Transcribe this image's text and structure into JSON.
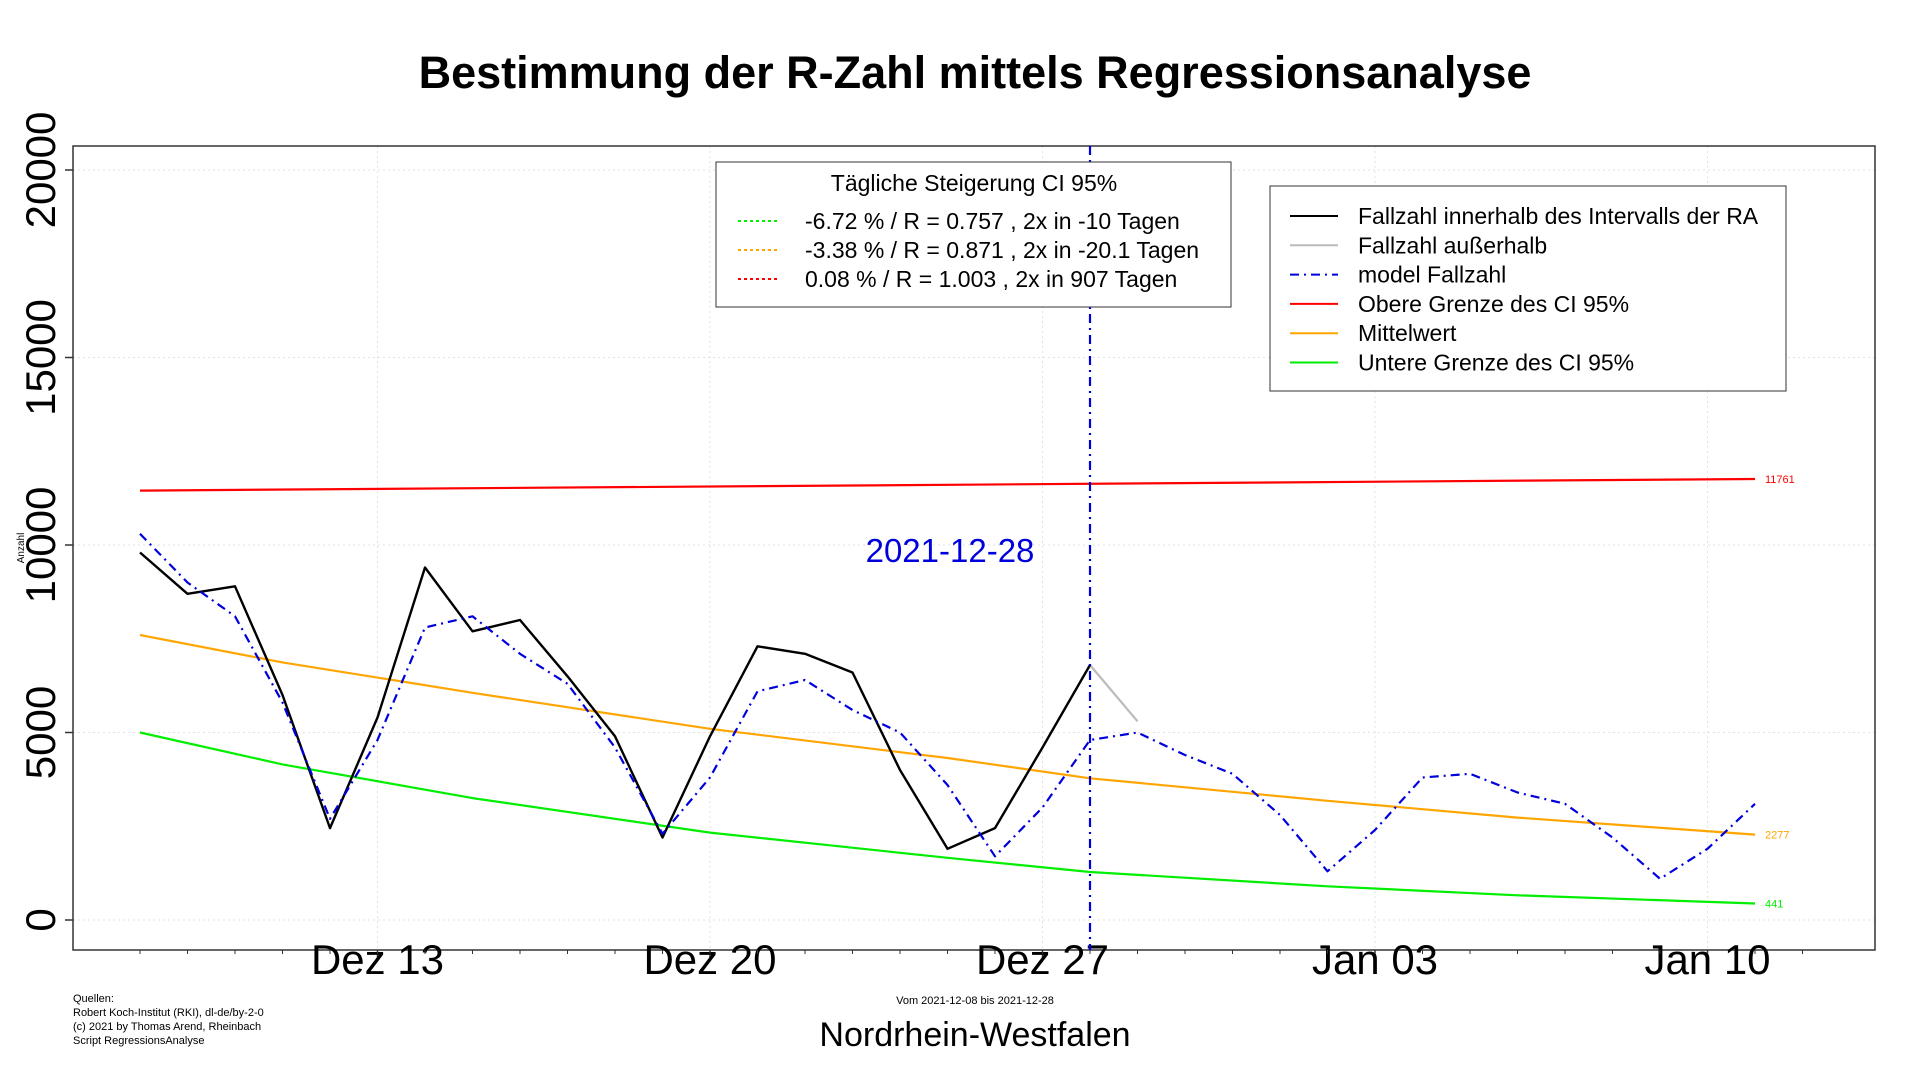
{
  "chart_data": {
    "type": "line",
    "title": "Bestimmung der R-Zahl mittels Regressionsanalyse",
    "xlabel": "Nordrhein-Westfalen",
    "ylabel": "Anzahl",
    "subtitle": "Vom 2021-12-08 bis 2021-12-28",
    "x_ticks": [
      "Dez 13",
      "Dez 20",
      "Dez 27",
      "Jan 03",
      "Jan 10"
    ],
    "y_ticks": [
      "0",
      "5000",
      "10000",
      "15000",
      "20000"
    ],
    "ylim": [
      0,
      20000
    ],
    "grid": true,
    "vline": {
      "date": "2021-12-28",
      "label": "2021-12-28",
      "color": "#0000dd"
    },
    "sources": [
      "Quellen:",
      "Robert Koch-Institut (RKI), dl-de/by-2-0",
      "(c) 2021 by Thomas Arend, Rheinbach",
      "Script RegressionsAnalyse"
    ],
    "ci_legend": {
      "title": "Tägliche Steigerung CI  95%",
      "entries": [
        {
          "text": "-6.72 % / R = 0.757 , 2x in -10 Tagen",
          "color": "#00ee00"
        },
        {
          "text": "-3.38 % / R = 0.871 , 2x in -20.1 Tagen",
          "color": "#ffa500"
        },
        {
          "text": "0.08 % / R = 1.003 , 2x in 907 Tagen",
          "color": "#ff0000"
        }
      ]
    },
    "legend": {
      "placement": "top-right",
      "entries": [
        {
          "text": "Fallzahl innerhalb des Intervalls der RA",
          "color": "#000000",
          "dash": "solid"
        },
        {
          "text": "Fallzahl außerhalb",
          "color": "#bbbbbb",
          "dash": "solid"
        },
        {
          "text": "model Fallzahl",
          "color": "#0000dd",
          "dash": "dashdot"
        },
        {
          "text": "Obere Grenze des CI 95%",
          "color": "#ff0000",
          "dash": "solid"
        },
        {
          "text": "Mittelwert",
          "color": "#ffa500",
          "dash": "solid"
        },
        {
          "text": "Untere Grenze des CI 95%",
          "color": "#00ee00",
          "dash": "solid"
        }
      ]
    },
    "series": [
      {
        "name": "Fallzahl innerhalb des Intervalls der RA",
        "color": "#000000",
        "dash": "solid",
        "x": [
          "2021-12-08",
          "2021-12-09",
          "2021-12-10",
          "2021-12-11",
          "2021-12-12",
          "2021-12-13",
          "2021-12-14",
          "2021-12-15",
          "2021-12-16",
          "2021-12-17",
          "2021-12-18",
          "2021-12-19",
          "2021-12-20",
          "2021-12-21",
          "2021-12-22",
          "2021-12-23",
          "2021-12-24",
          "2021-12-25",
          "2021-12-26",
          "2021-12-27",
          "2021-12-28"
        ],
        "y": [
          9800,
          8700,
          8900,
          6000,
          2450,
          5400,
          9400,
          7700,
          8000,
          6500,
          4900,
          2200,
          4900,
          7300,
          7100,
          6600,
          4000,
          1900,
          2450,
          4600,
          6800
        ]
      },
      {
        "name": "Fallzahl außerhalb",
        "color": "#bbbbbb",
        "dash": "solid",
        "x": [
          "2021-12-28",
          "2021-12-29"
        ],
        "y": [
          6800,
          5300
        ]
      },
      {
        "name": "model Fallzahl",
        "color": "#0000dd",
        "dash": "dashdot",
        "x": [
          "2021-12-08",
          "2021-12-09",
          "2021-12-10",
          "2021-12-11",
          "2021-12-12",
          "2021-12-13",
          "2021-12-14",
          "2021-12-15",
          "2021-12-16",
          "2021-12-17",
          "2021-12-18",
          "2021-12-19",
          "2021-12-20",
          "2021-12-21",
          "2021-12-22",
          "2021-12-23",
          "2021-12-24",
          "2021-12-25",
          "2021-12-26",
          "2021-12-27",
          "2021-12-28",
          "2021-12-29",
          "2021-12-30",
          "2021-12-31",
          "2022-01-01",
          "2022-01-02",
          "2022-01-03",
          "2022-01-04",
          "2022-01-05",
          "2022-01-06",
          "2022-01-07",
          "2022-01-08",
          "2022-01-09",
          "2022-01-10",
          "2022-01-11"
        ],
        "y": [
          10300,
          9000,
          8100,
          5800,
          2700,
          4800,
          7800,
          8100,
          7100,
          6300,
          4600,
          2300,
          3800,
          6100,
          6400,
          5600,
          5000,
          3600,
          1700,
          3000,
          4800,
          5000,
          4400,
          3900,
          2800,
          1300,
          2400,
          3800,
          3900,
          3400,
          3100,
          2200,
          1100,
          1900,
          3100
        ]
      },
      {
        "name": "Obere Grenze des CI 95%",
        "color": "#ff0000",
        "dash": "solid",
        "x": [
          "2021-12-08",
          "2022-01-11"
        ],
        "y": [
          11450,
          11761
        ],
        "end_label": "11761"
      },
      {
        "name": "Mittelwert",
        "color": "#ffa500",
        "dash": "solid",
        "x": [
          "2021-12-08",
          "2021-12-11",
          "2021-12-15",
          "2021-12-20",
          "2021-12-25",
          "2021-12-28",
          "2022-01-02",
          "2022-01-06",
          "2022-01-11"
        ],
        "y": [
          7600,
          6870,
          6060,
          5100,
          4320,
          3780,
          3180,
          2730,
          2277
        ],
        "end_label": "2277"
      },
      {
        "name": "Untere Grenze des CI 95%",
        "color": "#00ee00",
        "dash": "solid",
        "x": [
          "2021-12-08",
          "2021-12-11",
          "2021-12-15",
          "2021-12-20",
          "2021-12-25",
          "2021-12-28",
          "2022-01-02",
          "2022-01-06",
          "2022-01-11"
        ],
        "y": [
          5000,
          4150,
          3250,
          2330,
          1660,
          1280,
          900,
          660,
          441
        ],
        "end_label": "441"
      }
    ]
  }
}
